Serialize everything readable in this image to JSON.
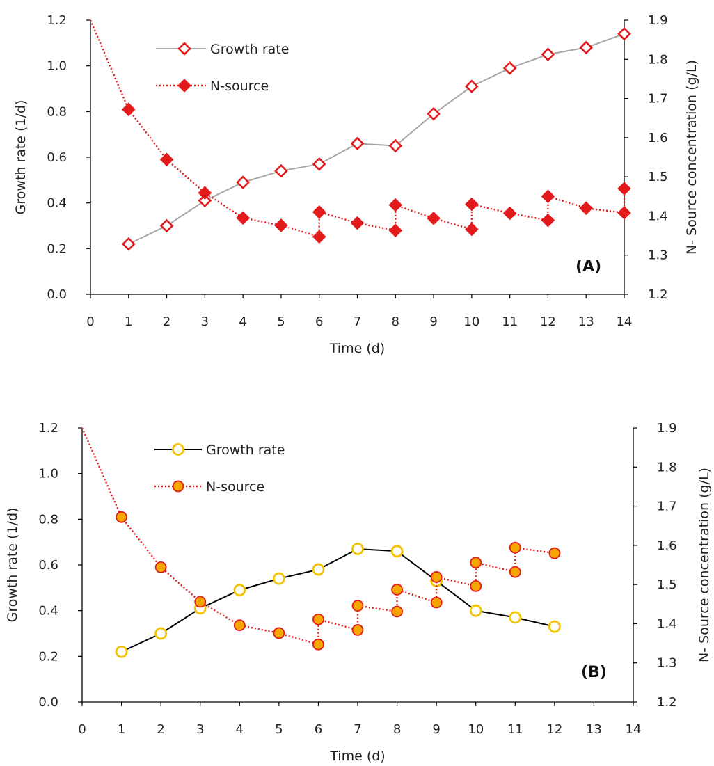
{
  "chart_data": [
    {
      "type": "line",
      "panel_label": "(A)",
      "xlabel": "Time (d)",
      "ylabel": "Growth rate (1/d)",
      "y2label": "N- Source concentration (g/L)",
      "xlim": [
        0,
        14
      ],
      "ylim": [
        0,
        1.2
      ],
      "y2lim": [
        1.2,
        1.9
      ],
      "x_ticks": [
        "0",
        "1",
        "2",
        "3",
        "4",
        "5",
        "6",
        "7",
        "8",
        "9",
        "10",
        "11",
        "12",
        "13",
        "14"
      ],
      "y_ticks": [
        "0.0",
        "0.2",
        "0.4",
        "0.6",
        "0.8",
        "1.0",
        "1.2"
      ],
      "y2_ticks": [
        "1.2",
        "1.3",
        "1.4",
        "1.5",
        "1.6",
        "1.7",
        "1.8",
        "1.9"
      ],
      "legend_position": "top-left",
      "grid": false,
      "series": [
        {
          "name": "Growth rate",
          "axis": "left",
          "style": "solid",
          "marker": "diamond-open",
          "line_color": "#a6a6a6",
          "marker_color": "#e31a1c",
          "x": [
            1,
            2,
            3,
            4,
            5,
            6,
            7,
            8,
            9,
            10,
            11,
            12,
            13,
            14
          ],
          "y": [
            0.22,
            0.3,
            0.41,
            0.49,
            0.54,
            0.57,
            0.66,
            0.65,
            0.79,
            0.91,
            0.99,
            1.05,
            1.08,
            1.14
          ]
        },
        {
          "name": "N-source",
          "axis": "right",
          "style": "dotted",
          "marker": "diamond-filled",
          "line_color": "#e31a1c",
          "marker_color": "#e31a1c",
          "x": [
            0,
            1,
            2,
            3,
            4,
            5,
            6,
            6,
            7,
            8,
            8,
            9,
            10,
            10,
            11,
            12,
            12,
            13,
            14,
            14
          ],
          "y": [
            1.9,
            1.672,
            1.544,
            1.459,
            1.395,
            1.376,
            1.347,
            1.41,
            1.382,
            1.363,
            1.428,
            1.394,
            1.366,
            1.43,
            1.407,
            1.389,
            1.45,
            1.42,
            1.408,
            1.47
          ]
        }
      ]
    },
    {
      "type": "line",
      "panel_label": "(B)",
      "xlabel": "Time (d)",
      "ylabel": "Growth rate (1/d)",
      "y2label": "N- Source concentration (g/L)",
      "xlim": [
        0,
        14
      ],
      "ylim": [
        0,
        1.2
      ],
      "y2lim": [
        1.2,
        1.9
      ],
      "x_ticks": [
        "0",
        "1",
        "2",
        "3",
        "4",
        "5",
        "6",
        "7",
        "8",
        "9",
        "10",
        "11",
        "12",
        "13",
        "14"
      ],
      "y_ticks": [
        "0.0",
        "0.2",
        "0.4",
        "0.6",
        "0.8",
        "1.0",
        "1.2"
      ],
      "y2_ticks": [
        "1.2",
        "1.3",
        "1.4",
        "1.5",
        "1.6",
        "1.7",
        "1.8",
        "1.9"
      ],
      "legend_position": "top-left",
      "grid": false,
      "series": [
        {
          "name": "Growth rate",
          "axis": "left",
          "style": "solid",
          "marker": "circle-open",
          "line_color": "#000000",
          "marker_color": "#f5c400",
          "x": [
            1,
            2,
            3,
            4,
            5,
            6,
            7,
            8,
            9,
            10,
            11,
            12
          ],
          "y": [
            0.22,
            0.3,
            0.41,
            0.49,
            0.54,
            0.58,
            0.67,
            0.66,
            0.53,
            0.4,
            0.37,
            0.33
          ]
        },
        {
          "name": "N-source",
          "axis": "right",
          "style": "dotted",
          "marker": "circle-filled",
          "line_color": "#e31a1c",
          "marker_color": "#f7a600",
          "x": [
            0,
            1,
            2,
            3,
            4,
            5,
            6,
            6,
            7,
            7,
            8,
            8,
            9,
            9,
            10,
            10,
            11,
            11,
            12
          ],
          "y": [
            1.9,
            1.672,
            1.544,
            1.456,
            1.396,
            1.376,
            1.347,
            1.411,
            1.384,
            1.446,
            1.431,
            1.487,
            1.454,
            1.519,
            1.496,
            1.556,
            1.532,
            1.594,
            1.58
          ]
        }
      ]
    }
  ]
}
